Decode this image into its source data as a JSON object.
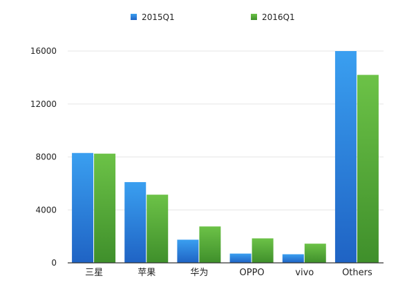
{
  "chart_data": {
    "type": "bar",
    "categories": [
      "三星",
      "苹果",
      "华为",
      "OPPO",
      "vivo",
      "Others"
    ],
    "series": [
      {
        "name": "2015Q1",
        "values": [
          8300,
          6100,
          1750,
          700,
          650,
          16000
        ],
        "color": "#2f7fdb"
      },
      {
        "name": "2016Q1",
        "values": [
          8250,
          5150,
          2750,
          1850,
          1450,
          14200
        ],
        "color": "#5aab3c"
      }
    ],
    "yticks": [
      "0",
      "4000",
      "8000",
      "12000",
      "16000"
    ],
    "ylim": [
      0,
      16000
    ],
    "grid": true,
    "legend_position": "top"
  }
}
